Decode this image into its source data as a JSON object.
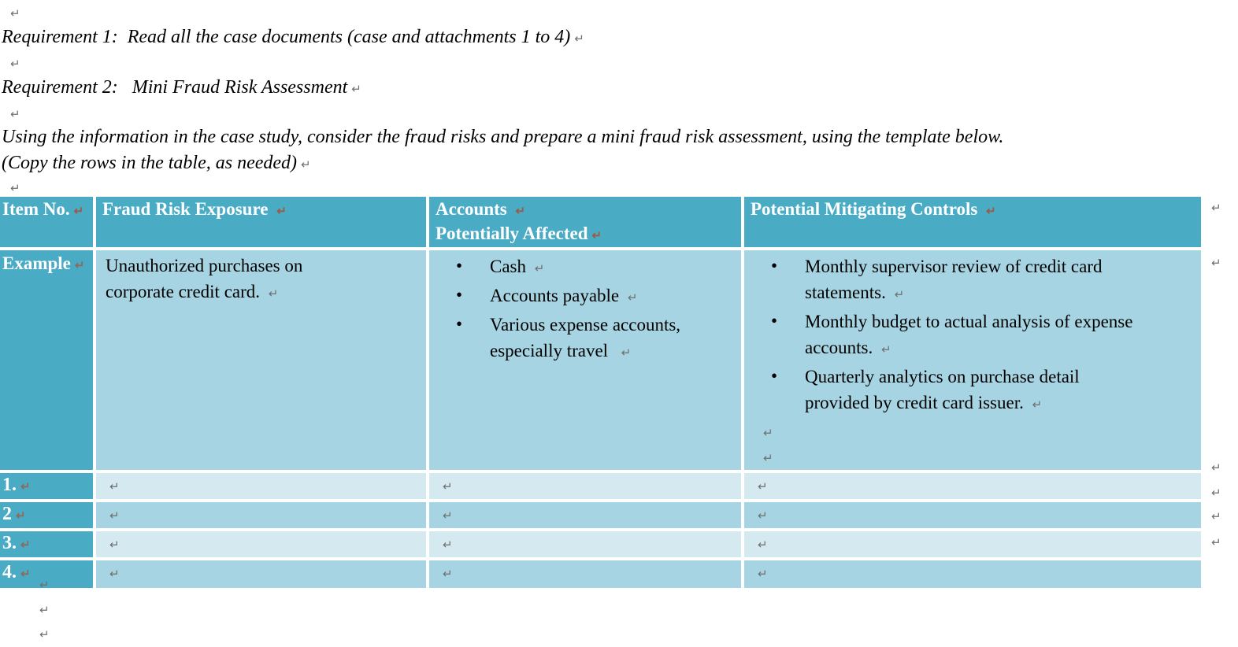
{
  "marks": {
    "paragraph": "↵"
  },
  "intro": {
    "requirement1": "Requirement 1:  Read all the case documents (case and attachments 1 to 4)",
    "requirement2": "Requirement 2:   Mini Fraud Risk Assessment",
    "instructions": "Using the information in the case study, consider the fraud risks and prepare a mini fraud risk assessment, using the template below.\n(Copy the rows in the table, as needed)"
  },
  "table": {
    "headers": {
      "item_no": "Item No.",
      "fraud_risk_exposure": "Fraud Risk Exposure ",
      "accounts_line1": "Accounts ",
      "accounts_line2": "Potentially Affected",
      "mitigating_controls": "Potential Mitigating Controls "
    },
    "example": {
      "label": "Example",
      "risk": "Unauthorized purchases on\ncorporate credit card. ",
      "accounts": [
        "Cash ",
        "Accounts payable ",
        "Various expense accounts,\nespecially travel  "
      ],
      "controls": [
        "Monthly supervisor review of credit card\nstatements. ",
        "Monthly budget to actual analysis of expense\naccounts. ",
        "Quarterly analytics on purchase detail\nprovided by credit card issuer. "
      ]
    },
    "rows": [
      {
        "label": "1."
      },
      {
        "label": "2"
      },
      {
        "label": "3."
      },
      {
        "label": "4."
      }
    ]
  },
  "colors": {
    "header_teal": "#4aabc5",
    "row_dark": "#a6d4e2",
    "row_light": "#d5e9f1",
    "header_text": "#ffffff",
    "mark_gray": "#6f6f6f",
    "mark_rust": "#9c5b49"
  }
}
